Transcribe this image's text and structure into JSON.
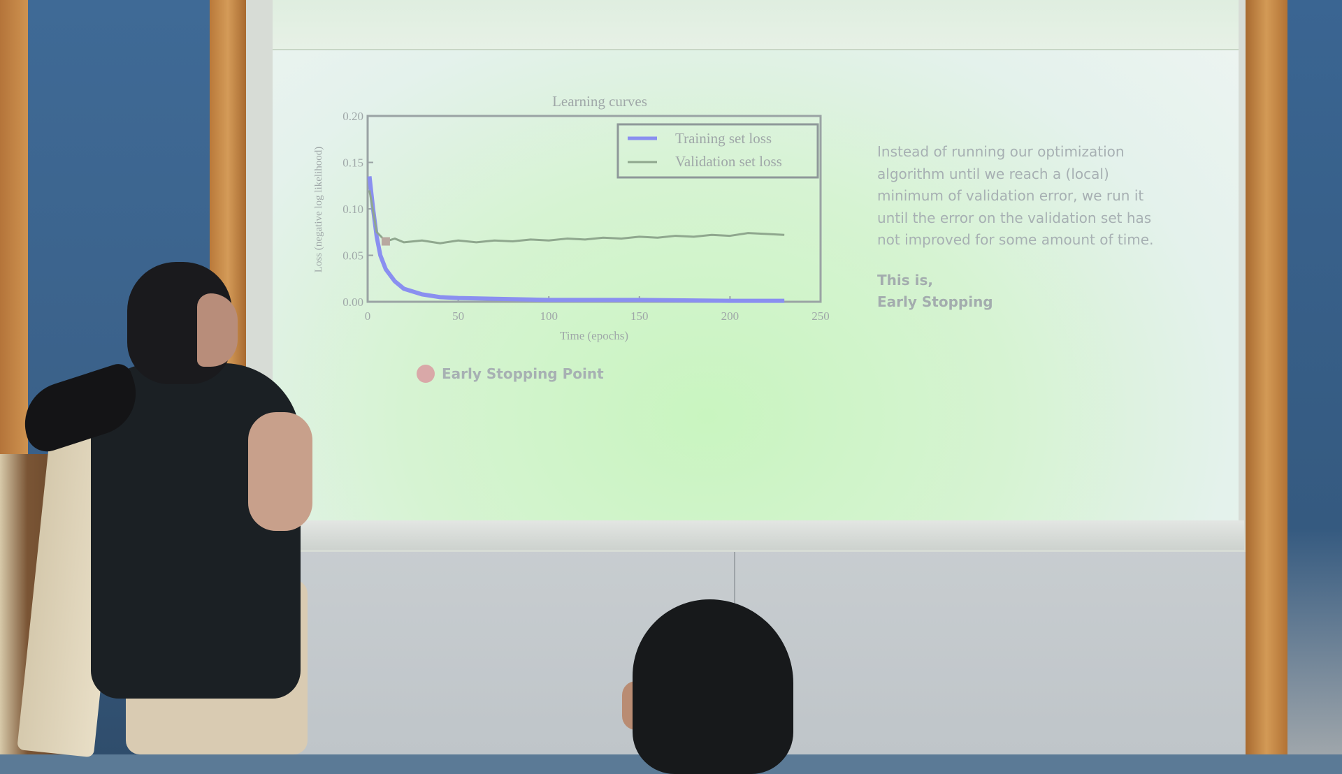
{
  "scene": {
    "description_colors": {
      "wall": "#3f6a96",
      "wood": "#c9894a",
      "projection": "#d6f3d2",
      "text": "#a7b0b3"
    }
  },
  "slide": {
    "paragraph1": "Instead of running our optimization algorithm until we reach a (local) minimum of validation error, we run it until the error on the validation set has not improved for some amount of time.",
    "line_a": "This is,",
    "line_b": "Early Stopping",
    "marker_label": "Early Stopping Point",
    "marker_color": "#d9a8a8"
  },
  "chart_data": {
    "type": "line",
    "title": "Learning curves",
    "xlabel": "Time (epochs)",
    "ylabel": "Loss (negative log likelihood)",
    "xlim": [
      0,
      250
    ],
    "ylim": [
      0,
      0.2
    ],
    "xticks": [
      "0",
      "50",
      "100",
      "150",
      "200",
      "250"
    ],
    "yticks": [
      "0.00",
      "0.05",
      "0.10",
      "0.15",
      "0.20"
    ],
    "legend_placement": "top-right",
    "series": [
      {
        "name": "Training set loss",
        "color": "#8a8ff0",
        "x": [
          1,
          3,
          5,
          7,
          10,
          15,
          20,
          30,
          40,
          50,
          75,
          100,
          150,
          200,
          230
        ],
        "y": [
          0.135,
          0.1,
          0.07,
          0.05,
          0.035,
          0.022,
          0.014,
          0.008,
          0.005,
          0.004,
          0.003,
          0.002,
          0.002,
          0.001,
          0.001
        ]
      },
      {
        "name": "Validation set loss",
        "color": "#8fa78e",
        "x": [
          1,
          5,
          10,
          15,
          20,
          30,
          40,
          50,
          60,
          70,
          80,
          90,
          100,
          110,
          120,
          130,
          140,
          150,
          160,
          170,
          180,
          190,
          200,
          210,
          220,
          230
        ],
        "y": [
          0.12,
          0.075,
          0.065,
          0.068,
          0.064,
          0.066,
          0.063,
          0.066,
          0.064,
          0.066,
          0.065,
          0.067,
          0.066,
          0.068,
          0.067,
          0.069,
          0.068,
          0.07,
          0.069,
          0.071,
          0.07,
          0.072,
          0.071,
          0.074,
          0.073,
          0.072
        ]
      }
    ],
    "early_stopping_point": {
      "x": 10,
      "y": 0.065
    }
  }
}
